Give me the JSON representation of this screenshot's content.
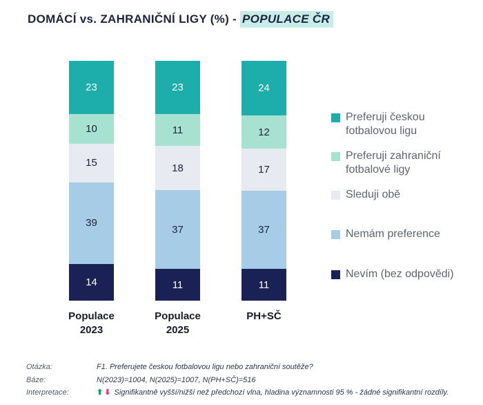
{
  "title": {
    "main": "DOMÁCÍ vs. ZAHRANIČNÍ LIGY (%) - ",
    "highlight": "POPULACE ČR",
    "highlight_bg": "#c8ece6",
    "text_color": "#1c2342"
  },
  "chart_data": {
    "type": "bar",
    "stacked": true,
    "orientation": "vertical",
    "unit": "%",
    "data_labels": true,
    "legend_position": "right",
    "categories": [
      "Populace\n2023",
      "Populace\n2025",
      "PH+SČ"
    ],
    "series": [
      {
        "name": "Preferuji českou fotbalovou ligu",
        "color": "#1daeab",
        "values": [
          23,
          23,
          24
        ]
      },
      {
        "name": "Preferuji zahraniční fotbalové ligy",
        "color": "#a6e2cf",
        "values": [
          10,
          11,
          12
        ]
      },
      {
        "name": "Sleduji obě",
        "color": "#e8eaf1",
        "values": [
          15,
          18,
          17
        ]
      },
      {
        "name": "Nemám preference",
        "color": "#a6cde5",
        "values": [
          39,
          37,
          37
        ]
      },
      {
        "name": "Nevím (bez odpovědi)",
        "color": "#1a2154",
        "values": [
          14,
          11,
          11
        ]
      }
    ],
    "label_color_dark": "#20263a",
    "label_color_light": "#ffffff"
  },
  "footer": {
    "rows": [
      {
        "label": "Otázka:",
        "value": "F1. Preferujete českou fotbalovou ligu nebo zahraniční soutěže?"
      },
      {
        "label": "Báze:",
        "value": "N(2023)=1004, N(2025)=1007, N(PH+SČ)=516"
      },
      {
        "label": "Interpretace:",
        "icons": [
          {
            "name": "significant-up-arrow-icon",
            "glyph": "⬆",
            "color": "#00a651"
          },
          {
            "name": "significant-down-arrow-icon",
            "glyph": "⬇",
            "color": "#e8336e"
          }
        ],
        "value": "Signifikantně vyšší/nižší než předchozí vlna, hladina významnosti 95 % - žádné signifikantní rozdíly."
      }
    ]
  }
}
